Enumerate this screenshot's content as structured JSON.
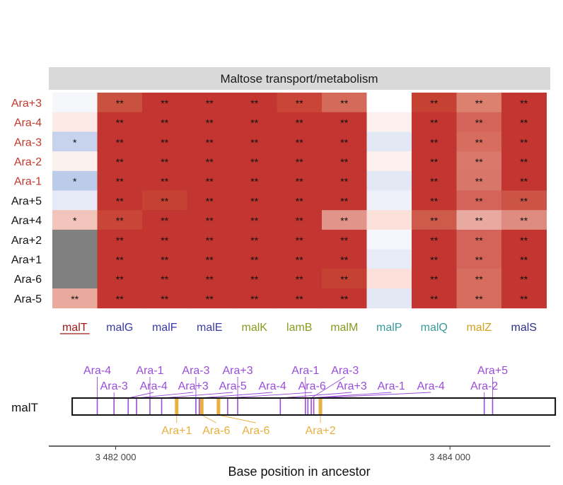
{
  "chart_data": [
    {
      "type": "heatmap",
      "title": "Maltose transport/metabolism",
      "rows": [
        "Ara+3",
        "Ara-4",
        "Ara-3",
        "Ara-2",
        "Ara-1",
        "Ara+5",
        "Ara+4",
        "Ara+2",
        "Ara+1",
        "Ara-6",
        "Ara-5"
      ],
      "row_colors": [
        "#c0392b",
        "#c0392b",
        "#c0392b",
        "#c0392b",
        "#c0392b",
        "#111111",
        "#111111",
        "#111111",
        "#111111",
        "#111111",
        "#111111"
      ],
      "columns": [
        "malT",
        "malG",
        "malF",
        "malE",
        "malK",
        "lamB",
        "malM",
        "malP",
        "malQ",
        "malZ",
        "malS"
      ],
      "column_colors": [
        "#a01818",
        "#3a3aa8",
        "#3a3aa8",
        "#3a3aa8",
        "#8a9a20",
        "#8a9a20",
        "#8a9a20",
        "#3a9a9a",
        "#3a9a9a",
        "#d4a020",
        "#2e2e8a"
      ],
      "underlined_column": "malT",
      "cell_colors": [
        [
          "#f6f7fb",
          "#c9513f",
          "#c23530",
          "#c23530",
          "#c23530",
          "#c84537",
          "#d46a5a",
          "#ffffff",
          "#c54233",
          "#dc8070",
          "#c23530"
        ],
        [
          "#fbeae6",
          "#c23530",
          "#c23530",
          "#c23530",
          "#c23530",
          "#c23530",
          "#c23530",
          "#fbf0ee",
          "#c23530",
          "#d4645a",
          "#c23530"
        ],
        [
          "#c7d3ec",
          "#c23530",
          "#c23530",
          "#c23530",
          "#c23530",
          "#c23530",
          "#c23530",
          "#e3e8f5",
          "#c23530",
          "#d66d5e",
          "#c23530"
        ],
        [
          "#fbf1ef",
          "#c23530",
          "#c23530",
          "#c23530",
          "#c23530",
          "#c23530",
          "#c23530",
          "#fdf1ef",
          "#c23530",
          "#d9786a",
          "#c23530"
        ],
        [
          "#bccbe9",
          "#c23530",
          "#c23530",
          "#c23530",
          "#c23530",
          "#c23530",
          "#c23530",
          "#e3e8f5",
          "#c23530",
          "#d8766a",
          "#c23530"
        ],
        [
          "#e5eaf6",
          "#c23530",
          "#c54233",
          "#c23530",
          "#c23530",
          "#c23530",
          "#c23530",
          "#eef1f9",
          "#c23530",
          "#d4645a",
          "#cc5447"
        ],
        [
          "#f2c4bb",
          "#c84537",
          "#c23530",
          "#c23530",
          "#c23530",
          "#c23530",
          "#e1948a",
          "#fbe0da",
          "#ce5a4c",
          "#e8aaa0",
          "#df8c80"
        ],
        [
          "#808080",
          "#c23530",
          "#c23530",
          "#c23530",
          "#c23530",
          "#c23530",
          "#c23530",
          "#f4f6fb",
          "#c23530",
          "#d4645a",
          "#c23530"
        ],
        [
          "#808080",
          "#c23530",
          "#c23530",
          "#c23530",
          "#c23530",
          "#c23530",
          "#c23530",
          "#e8ecf7",
          "#c23530",
          "#d4645a",
          "#c23530"
        ],
        [
          "#808080",
          "#c23530",
          "#c23530",
          "#c23530",
          "#c23530",
          "#c23530",
          "#c54233",
          "#fbe0da",
          "#c23530",
          "#d66d5e",
          "#c23530"
        ],
        [
          "#e9a99c",
          "#c23530",
          "#c23530",
          "#c23530",
          "#c23530",
          "#c23530",
          "#c23530",
          "#e3e8f5",
          "#c23530",
          "#d66d5e",
          "#c23530"
        ]
      ],
      "annotations": [
        [
          "",
          "**",
          "**",
          "**",
          "**",
          "**",
          "**",
          "",
          "**",
          "**",
          "**"
        ],
        [
          "",
          "**",
          "**",
          "**",
          "**",
          "**",
          "**",
          "",
          "**",
          "**",
          "**"
        ],
        [
          "*",
          "**",
          "**",
          "**",
          "**",
          "**",
          "**",
          "",
          "**",
          "**",
          "**"
        ],
        [
          "",
          "**",
          "**",
          "**",
          "**",
          "**",
          "**",
          "",
          "**",
          "**",
          "**"
        ],
        [
          "*",
          "**",
          "**",
          "**",
          "**",
          "**",
          "**",
          "",
          "**",
          "**",
          "**"
        ],
        [
          "",
          "**",
          "**",
          "**",
          "**",
          "**",
          "**",
          "",
          "**",
          "**",
          "**"
        ],
        [
          "*",
          "**",
          "**",
          "**",
          "**",
          "**",
          "**",
          "",
          "**",
          "**",
          "**"
        ],
        [
          "",
          "**",
          "**",
          "**",
          "**",
          "**",
          "**",
          "",
          "**",
          "**",
          "**"
        ],
        [
          "",
          "**",
          "**",
          "**",
          "**",
          "**",
          "**",
          "",
          "**",
          "**",
          "**"
        ],
        [
          "",
          "**",
          "**",
          "**",
          "**",
          "**",
          "**",
          "",
          "**",
          "**",
          "**"
        ],
        [
          "**",
          "**",
          "**",
          "**",
          "**",
          "**",
          "**",
          "",
          "**",
          "**",
          "**"
        ]
      ]
    },
    {
      "type": "scatter",
      "ylabel": "malT",
      "xlabel": "Base position in ancestor",
      "xlim": [
        3481600,
        3484600
      ],
      "gene_span": [
        3481740,
        3484630
      ],
      "ticks": [
        {
          "value": 3482000,
          "label": "3 482 000"
        },
        {
          "value": 3484000,
          "label": "3 484 000"
        }
      ],
      "mutations": [
        {
          "pos": 3481890,
          "label": "Ara-4",
          "line": 1,
          "kind": "purple"
        },
        {
          "pos": 3481990,
          "label": "Ara-3",
          "line": 2,
          "kind": "purple"
        },
        {
          "pos": 3482075,
          "label": "Ara-4",
          "line": 2,
          "kind": "purple"
        },
        {
          "pos": 3482125,
          "label": "Ara+3",
          "line": 2,
          "kind": "purple"
        },
        {
          "pos": 3482205,
          "label": "Ara-1",
          "line": 1,
          "kind": "purple"
        },
        {
          "pos": 3482275,
          "label": "Ara-5",
          "line": 2,
          "kind": "purple"
        },
        {
          "pos": 3482365,
          "label": "Ara+1",
          "line": 3,
          "kind": "gold"
        },
        {
          "pos": 3482480,
          "label": "Ara-3",
          "line": 1,
          "kind": "purple"
        },
        {
          "pos": 3482500,
          "label": "Ara-4",
          "line": 2,
          "kind": "purple"
        },
        {
          "pos": 3482515,
          "label": "Ara-6",
          "line": 3,
          "kind": "gold"
        },
        {
          "pos": 3482615,
          "label": "Ara-6",
          "line": 3,
          "kind": "gold"
        },
        {
          "pos": 3482670,
          "label": "Ara-6",
          "line": 2,
          "kind": "purple"
        },
        {
          "pos": 3482730,
          "label": "Ara+3",
          "line": 1,
          "kind": "purple"
        },
        {
          "pos": 3482985,
          "label": "Ara+3",
          "line": 2,
          "kind": "purple"
        },
        {
          "pos": 3483135,
          "label": "Ara-1",
          "line": 1,
          "kind": "purple"
        },
        {
          "pos": 3483150,
          "label": "Ara-1",
          "line": 2,
          "kind": "purple"
        },
        {
          "pos": 3483170,
          "label": "Ara-3",
          "line": 1,
          "kind": "purple"
        },
        {
          "pos": 3483185,
          "label": "Ara-4",
          "line": 2,
          "kind": "purple"
        },
        {
          "pos": 3483225,
          "label": "Ara+2",
          "line": 3,
          "kind": "gold"
        },
        {
          "pos": 3484205,
          "label": "Ara-2",
          "line": 2,
          "kind": "purple"
        },
        {
          "pos": 3484255,
          "label": "Ara+5",
          "line": 1,
          "kind": "purple"
        }
      ],
      "colors": {
        "purple": "#9a4dd8",
        "gold": "#e8b040"
      }
    }
  ]
}
